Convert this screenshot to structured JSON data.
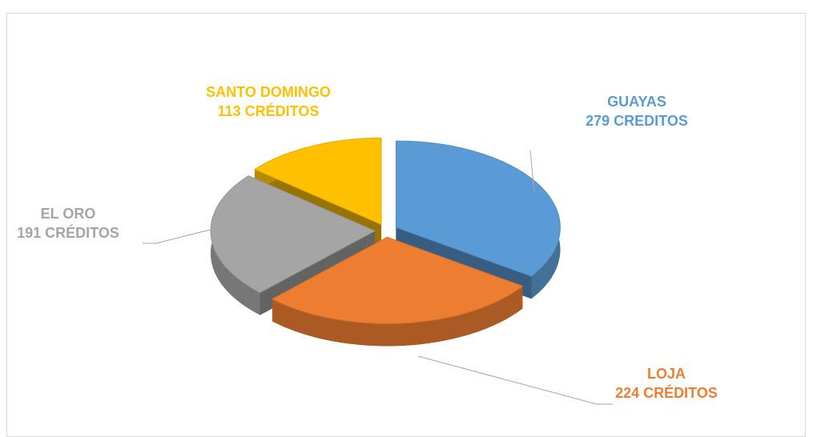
{
  "chart_data": {
    "type": "pie",
    "categories": [
      "GUAYAS",
      "LOJA",
      "EL ORO",
      "SANTO DOMINGO"
    ],
    "values": [
      279,
      224,
      191,
      113
    ],
    "value_labels": [
      "279 CREDITOS",
      "224 CRÉDITOS",
      "191 CRÉDITOS",
      "113 CRÉDITOS"
    ],
    "colors": [
      "#5b9bd5",
      "#ed7d31",
      "#a5a5a5",
      "#ffc000"
    ]
  }
}
